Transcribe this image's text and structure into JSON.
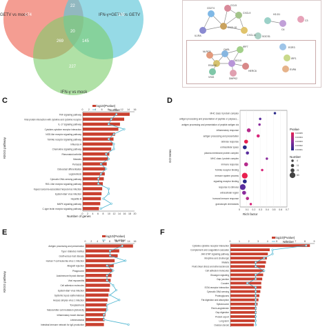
{
  "venn": {
    "left_label": "GETV vs mock",
    "right_label": "IFN-γ+GETV vs GETV",
    "bottom_label": "IFN-γ vs mock",
    "regions": [
      {
        "region": "left_only",
        "value": "174"
      },
      {
        "region": "top_overlap",
        "value": "22"
      },
      {
        "region": "right_only",
        "value": "185"
      },
      {
        "region": "center",
        "value": "20"
      },
      {
        "region": "left_bottom",
        "value": "269"
      },
      {
        "region": "right_bottom",
        "value": "145"
      },
      {
        "region": "bottom_only",
        "value": "227"
      }
    ],
    "colors": {
      "left": "#f07c6e",
      "right": "#5ec6d8",
      "bottom": "#7ccd6a"
    }
  },
  "network": {
    "nodes": [
      "CCL5",
      "CXCL9",
      "CD274",
      "IL1RA",
      "CXCL10",
      "CXCL11",
      "IRF1",
      "SOCS1",
      "H2-D1",
      "C4",
      "IRF7",
      "NLRC5",
      "RSAD2",
      "OASL",
      "ISG15",
      "EGR3",
      "HERC6",
      "EVR6",
      "VSIG",
      "DMPK2",
      "C3"
    ]
  },
  "panel_c": {
    "label": "C",
    "ylabel": "KEGG pathway",
    "xlabel": "Number of genes",
    "legend": [
      "-log10(Pvalue)",
      "Number"
    ],
    "top_ticks": [
      "0",
      "2",
      "4",
      "6",
      "8",
      "10",
      "12",
      "14",
      "16"
    ],
    "bottom_ticks": [
      "0",
      "2",
      "4",
      "6",
      "8",
      "10",
      "12",
      "14",
      "16",
      "18",
      "20"
    ],
    "categories": [
      "TNF signaling pathway",
      "Viral protein interaction with cytokine and cytokine receptor",
      "IL-17 signaling pathway",
      "Cytokine-cytokine receptor interaction",
      "NOD-like receptor signaling pathway",
      "Toll-like receptor signaling pathway",
      "Influenza A",
      "Chemokine signaling pathway",
      "Rheumatoid arthritis",
      "Measles",
      "Pertussis",
      "Osteoclast differentiation",
      "Legionellosis",
      "Cytosolic DNA-sensing pathway",
      "RIG-I-like receptor signaling pathway",
      "Kaposi sarcoma-associated herpesvirus infection",
      "Epstein-Barr virus infection",
      "Hepatitis B",
      "MAPK signaling pathway",
      "C-type lectin receptor signaling pathway"
    ]
  },
  "panel_d": {
    "label": "D",
    "ylabel": "GO terms",
    "xlabel": "Rich factor",
    "legend_title_p": "Pvalue",
    "legend_p": [
      "0.00005",
      "0.00004",
      "0.00003",
      "0.00002",
      "0.00001"
    ],
    "legend_title_n": "Number",
    "legend_n": [
      "4",
      "11",
      "21",
      "60"
    ],
    "x_ticks": [
      "0",
      "0.1",
      "0.2",
      "0.3",
      "0.4",
      "0.5",
      "0.6",
      "0.7"
    ],
    "terms": [
      "MHC class II protein complex",
      "antigen processing and presentation of peptide or polysacc...",
      "antigen processing and presentation of peptide antigen via",
      "inflammatory response",
      "antigen processing and presentation",
      "defense response",
      "extracellular space",
      "plasma membrane protein complex",
      "MHC class I protein complex",
      "immune response",
      "Toll-like receptor binding",
      "immune system process",
      "signaling receptor binding",
      "response to stimulus",
      "extracellular region",
      "humoral immune response",
      "granulocyte chemotaxis"
    ]
  },
  "panel_e": {
    "label": "E",
    "ylabel": "KEGG pathway",
    "legend": [
      "-log10(Pvalue)",
      "Number"
    ],
    "top_ticks": [
      "0",
      "2",
      "4",
      "6",
      "8",
      "10",
      "12",
      "14",
      "16"
    ],
    "categories": [
      "Antigen processing and presentation",
      "Type I diabetes mellitus",
      "Graft-versus-host disease",
      "Human T-cell leukemia virus 1 infection",
      "Allograft rejection",
      "Phagosome",
      "Autoimmune thyroid disease",
      "Viral myocarditis",
      "Cell adhesion molecules",
      "Epstein-Barr virus infection",
      "Systemic lupus erythematosus",
      "Herpes simplex virus 1 infection",
      "Toxoplasmosis",
      "Natural killer cell mediated cytotoxicity",
      "Inflammatory bowel disease",
      "Leishmaniasis",
      "Intestinal immune network for IgA production"
    ]
  },
  "panel_f": {
    "label": "F",
    "legend": [
      "-log10(Pvalue)",
      "Number"
    ],
    "top_ticks": [
      "0",
      "1",
      "2",
      "3",
      "4",
      "5",
      "6",
      "7",
      "8",
      "9"
    ],
    "categories": [
      "Cytokine-cytokine receptor interaction",
      "Complement and coagulation cascades",
      "JAK-STAT signaling pathway",
      "Morphine and cholinergic",
      "Malaria",
      "Fluid shear stress and atherosclerosis",
      "Cell adhesion molecules",
      "Glucagon signaling",
      "Gap junction",
      "Cocaine",
      "ECM-receptor interaction",
      "Cytosolic DNA sensing",
      "Proteoglycans",
      "Fat digestion and absorption",
      "Spliceosome",
      "Renin-angiotensin",
      "Gap digestion",
      "Protein export",
      "Long-term",
      "Ovarian steroid"
    ]
  },
  "chart_data": [
    {
      "type": "bar",
      "panel": "C",
      "categories": [
        "TNF signaling pathway",
        "Viral protein interaction with cytokine and cytokine receptor",
        "IL-17 signaling pathway",
        "Cytokine-cytokine receptor interaction",
        "NOD-like receptor signaling pathway",
        "Toll-like receptor signaling pathway",
        "Influenza A",
        "Chemokine signaling pathway",
        "Rheumatoid arthritis",
        "Measles",
        "Pertussis",
        "Osteoclast differentiation",
        "Legionellosis",
        "Cytosolic DNA-sensing pathway",
        "RIG-I-like receptor signaling pathway",
        "Kaposi sarcoma-associated herpesvirus infection",
        "Epstein-Barr virus infection",
        "Hepatitis B",
        "MAPK signaling pathway",
        "C-type lectin receptor signaling pathway"
      ],
      "series": [
        {
          "name": "-log10(Pvalue)",
          "values": [
            14.5,
            12.8,
            11.5,
            11.0,
            10.0,
            9.5,
            9.2,
            8.8,
            8.2,
            7.8,
            7.4,
            7.0,
            6.8,
            6.5,
            6.2,
            6.0,
            5.8,
            5.6,
            5.4,
            5.0
          ]
        },
        {
          "name": "Number",
          "values": [
            13,
            11,
            10,
            16,
            12,
            10,
            12,
            12,
            9,
            10,
            7,
            9,
            7,
            6,
            6,
            10,
            10,
            8,
            11,
            7
          ]
        }
      ],
      "xlabel": "Number of genes",
      "ylabel": "KEGG pathway",
      "xlim": [
        0,
        16
      ]
    },
    {
      "type": "scatter",
      "panel": "D",
      "categories": [
        "MHC class II protein complex",
        "antigen processing and presentation of peptide or polysacc...",
        "antigen processing and presentation of peptide antigen via",
        "inflammatory response",
        "antigen processing and presentation",
        "defense response",
        "extracellular space",
        "plasma membrane protein complex",
        "MHC class I protein complex",
        "immune response",
        "Toll-like receptor binding",
        "immune system process",
        "signaling receptor binding",
        "response to stimulus",
        "extracellular region",
        "humoral immune response",
        "granulocyte chemotaxis"
      ],
      "x": [
        0.52,
        0.3,
        0.29,
        0.13,
        0.27,
        0.09,
        0.07,
        0.11,
        0.4,
        0.09,
        0.33,
        0.07,
        0.07,
        0.04,
        0.06,
        0.11,
        0.16
      ],
      "size": [
        4,
        4,
        4,
        21,
        11,
        21,
        21,
        11,
        4,
        21,
        4,
        60,
        21,
        60,
        21,
        11,
        4
      ],
      "xlabel": "Rich factor",
      "ylabel": "GO terms",
      "xlim": [
        0,
        0.7
      ]
    },
    {
      "type": "bar",
      "panel": "E",
      "categories": [
        "Antigen processing and presentation",
        "Type I diabetes mellitus",
        "Graft-versus-host disease",
        "Human T-cell leukemia virus 1 infection",
        "Allograft rejection",
        "Phagosome",
        "Autoimmune thyroid disease",
        "Viral myocarditis",
        "Cell adhesion molecules",
        "Epstein-Barr virus infection",
        "Systemic lupus erythematosus",
        "Herpes simplex virus 1 infection",
        "Toxoplasmosis",
        "Natural killer cell mediated cytotoxicity",
        "Inflammatory bowel disease",
        "Leishmaniasis",
        "Intestinal immune network for IgA production"
      ],
      "series": [
        {
          "name": "-log10(Pvalue)",
          "values": [
            15.5,
            11.0,
            10.5,
            9.5,
            9.2,
            8.8,
            8.5,
            8.2,
            8.0,
            7.8,
            7.5,
            7.2,
            7.0,
            6.8,
            6.5,
            6.2,
            6.0
          ]
        },
        {
          "name": "Number",
          "values": [
            12,
            8,
            8,
            13,
            7,
            9,
            7,
            7,
            9,
            10,
            8,
            11,
            7,
            7,
            6,
            6,
            14
          ]
        }
      ],
      "ylabel": "KEGG pathway",
      "xlim": [
        0,
        16
      ]
    },
    {
      "type": "bar",
      "panel": "F",
      "categories": [
        "Cytokine-cytokine receptor interaction",
        "Complement and coagulation cascades",
        "JAK-STAT signaling pathway",
        "Morphine and cholinergic",
        "Malaria",
        "Fluid shear stress and atherosclerosis",
        "Cell adhesion molecules",
        "Glucagon signaling",
        "Gap junction",
        "Cocaine",
        "ECM-receptor interaction",
        "Cytosolic DNA sensing",
        "Proteoglycans",
        "Fat digestion and absorption",
        "Spliceosome",
        "Renin-angiotensin",
        "Gap digestion",
        "Protein export",
        "Long-term",
        "Ovarian steroid"
      ],
      "series": [
        {
          "name": "-log10(Pvalue)",
          "values": [
            8.5,
            4.2,
            4.0,
            3.9,
            3.8,
            3.7,
            3.6,
            3.5,
            3.4,
            3.3,
            3.3,
            3.2,
            3.1,
            3.0,
            2.9,
            2.8,
            2.8,
            2.7,
            2.6,
            2.5
          ]
        },
        {
          "name": "Number",
          "values": [
            9,
            5,
            5,
            4,
            3,
            3,
            4,
            3,
            3,
            2,
            3,
            3,
            3,
            3,
            3,
            3,
            3,
            3,
            3,
            3
          ]
        }
      ],
      "xlim": [
        0,
        9
      ]
    }
  ]
}
